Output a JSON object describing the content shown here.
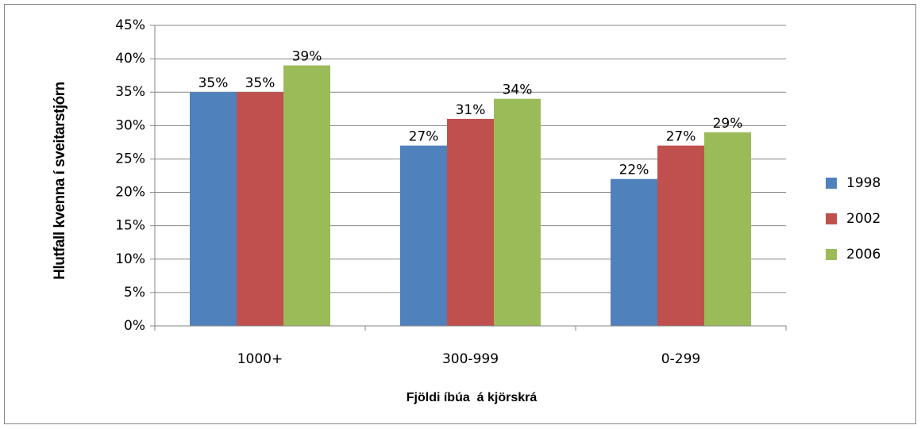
{
  "chart_data": {
    "type": "bar",
    "y_label": "Hlutfall kvenna í sveitarstjórn",
    "x_label": "Fjöldi íbúa  á kjörskrá",
    "categories": [
      "1000+",
      "300-999",
      "0-299"
    ],
    "series": [
      {
        "name": "1998",
        "color": "#4f81bd",
        "values": [
          35,
          27,
          22
        ],
        "value_labels": [
          "35%",
          "27%",
          "22%"
        ]
      },
      {
        "name": "2002",
        "color": "#c0504d",
        "values": [
          35,
          31,
          27
        ],
        "value_labels": [
          "35%",
          "31%",
          "27%"
        ]
      },
      {
        "name": "2006",
        "color": "#9bbb59",
        "values": [
          39,
          34,
          29
        ],
        "value_labels": [
          "39%",
          "34%",
          "29%"
        ]
      }
    ],
    "ylim": [
      0,
      45
    ],
    "yticks": [
      {
        "value": 0,
        "label": "0%"
      },
      {
        "value": 5,
        "label": "5%"
      },
      {
        "value": 10,
        "label": "10%"
      },
      {
        "value": 15,
        "label": "15%"
      },
      {
        "value": 20,
        "label": "20%"
      },
      {
        "value": 25,
        "label": "25%"
      },
      {
        "value": 30,
        "label": "30%"
      },
      {
        "value": 35,
        "label": "35%"
      },
      {
        "value": 40,
        "label": "40%"
      },
      {
        "value": 45,
        "label": "45%"
      }
    ],
    "grid": true,
    "legend": "right"
  }
}
